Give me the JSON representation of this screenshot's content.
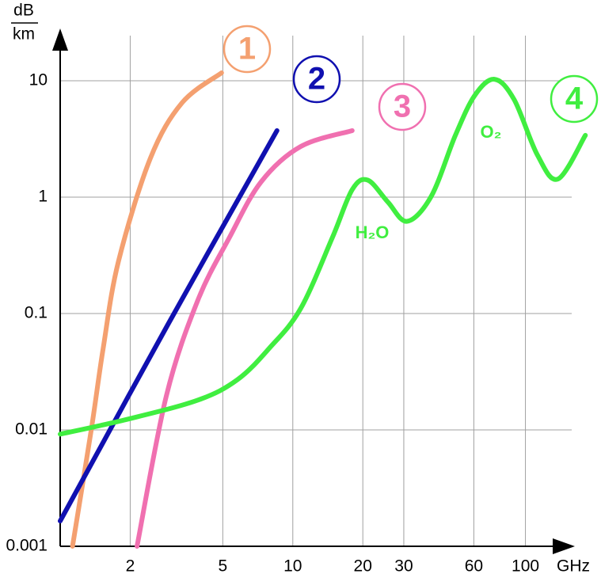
{
  "chart_data": {
    "type": "line",
    "x_label": "GHz",
    "y_label": {
      "numerator": "dB",
      "denominator": "km"
    },
    "log_x": true,
    "log_y": true,
    "grid": true,
    "xlim": [
      1,
      200
    ],
    "ylim": [
      0.001,
      25
    ],
    "xticks": [
      2,
      5,
      10,
      20,
      30,
      60,
      100
    ],
    "yticks": [
      0.001,
      0.01,
      0.1,
      1,
      10
    ],
    "series": [
      {
        "name": "1",
        "color": "#f4a070",
        "x": [
          1.13,
          1.36,
          1.53,
          1.78,
          2.44,
          3.34,
          4.94
        ],
        "values": [
          0.001,
          0.01,
          0.05,
          0.28,
          2.15,
          6.46,
          11.7
        ]
      },
      {
        "name": "2",
        "color": "#1010b0",
        "x": [
          1,
          2.9,
          8.55
        ],
        "values": [
          0.00165,
          0.08,
          3.73
        ]
      },
      {
        "name": "3",
        "color": "#f070b0",
        "x": [
          2.14,
          2.86,
          3.9,
          5.34,
          7.3,
          10.8,
          18
        ],
        "values": [
          0.001,
          0.0196,
          0.129,
          0.45,
          1.35,
          2.72,
          3.73
        ]
      },
      {
        "name": "4",
        "color": "#40ee40",
        "x": [
          1,
          1.93,
          3.9,
          5.78,
          7.9,
          10.8,
          14.8,
          18,
          21,
          25.6,
          31,
          39.4,
          50,
          60.6,
          73.6,
          89.4,
          112.6,
          138,
          181
        ],
        "values": [
          0.0092,
          0.0123,
          0.018,
          0.027,
          0.05,
          0.11,
          0.45,
          1.16,
          1.4,
          0.91,
          0.62,
          1.02,
          3.4,
          7.5,
          10.3,
          6.9,
          2.3,
          1.43,
          3.4
        ]
      }
    ],
    "annotations": [
      "H₂O",
      "O₂"
    ]
  }
}
